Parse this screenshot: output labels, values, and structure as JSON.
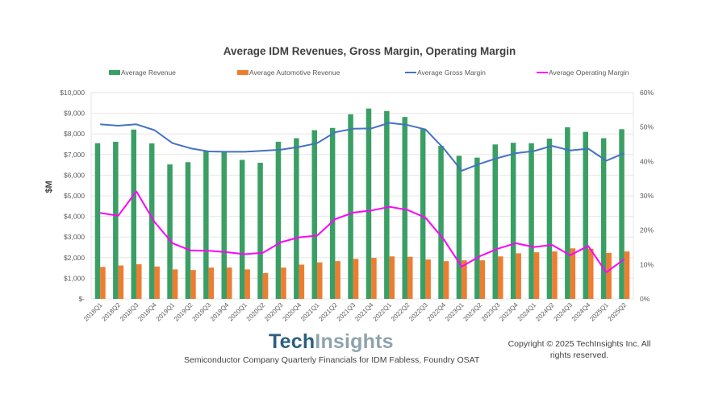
{
  "chart_data": {
    "type": "bar",
    "title": "Average IDM Revenues, Gross Margin, Operating Margin",
    "xlabel": "",
    "ylabel": "$M",
    "ylabel_right": "",
    "ylim": [
      0,
      10000
    ],
    "ylim_right": [
      0,
      60
    ],
    "grid": true,
    "legend_position": "top",
    "y_ticks": [
      "$-",
      "$1,000",
      "$2,000",
      "$3,000",
      "$4,000",
      "$5,000",
      "$6,000",
      "$7,000",
      "$8,000",
      "$9,000",
      "$10,000"
    ],
    "y_right_ticks": [
      "0%",
      "10%",
      "20%",
      "30%",
      "40%",
      "50%",
      "60%"
    ],
    "categories": [
      "2018Q1",
      "2018Q2",
      "2018Q3",
      "2018Q4",
      "2019Q1",
      "2019Q2",
      "2019Q3",
      "2019Q4",
      "2020Q1",
      "2020Q2",
      "2020Q3",
      "2020Q4",
      "2021Q1",
      "2021Q2",
      "2021Q3",
      "2021Q4",
      "2022Q1",
      "2022Q2",
      "2022Q3",
      "2022Q4",
      "2023Q1",
      "2023Q2",
      "2023Q3",
      "2023Q4",
      "2024Q1",
      "2024Q2",
      "2024Q3",
      "2024Q4",
      "2025Q1",
      "2025Q2"
    ],
    "series": [
      {
        "name": "Average Revenue",
        "type": "bar",
        "axis": "left",
        "color": "#3a9f64",
        "values": [
          7550,
          7620,
          8210,
          7540,
          6520,
          6630,
          7170,
          7150,
          6740,
          6600,
          7620,
          7790,
          8180,
          8290,
          8950,
          9230,
          9110,
          8820,
          8250,
          7420,
          6940,
          6850,
          7490,
          7570,
          7550,
          7770,
          8320,
          8100,
          7790,
          8230
        ]
      },
      {
        "name": "Average Automotive Revenue",
        "type": "bar",
        "axis": "left",
        "color": "#ed7d31",
        "values": [
          1550,
          1620,
          1680,
          1570,
          1430,
          1400,
          1520,
          1520,
          1430,
          1250,
          1520,
          1660,
          1770,
          1830,
          1940,
          1990,
          2060,
          2040,
          1910,
          1830,
          1870,
          1870,
          2060,
          2210,
          2260,
          2300,
          2450,
          2430,
          2230,
          2300
        ]
      },
      {
        "name": "Average Gross Margin",
        "type": "line",
        "axis": "right",
        "unit": "%",
        "color": "#4472c4",
        "values": [
          50.8,
          50.4,
          50.8,
          49.1,
          45.3,
          43.8,
          42.9,
          42.8,
          42.8,
          43.1,
          43.4,
          44.2,
          45.3,
          48.5,
          49.5,
          49.6,
          51.2,
          50.6,
          49.3,
          43.8,
          37.3,
          39.3,
          41.0,
          42.4,
          43.0,
          44.5,
          43.2,
          43.7,
          40.2,
          42.4
        ]
      },
      {
        "name": "Average Operating Margin",
        "type": "line",
        "axis": "right",
        "unit": "%",
        "color": "#ff00ff",
        "values": [
          25.0,
          24.2,
          31.3,
          22.4,
          16.2,
          14.1,
          14.0,
          13.6,
          13.0,
          13.4,
          16.5,
          17.9,
          18.4,
          23.2,
          25.1,
          25.7,
          26.8,
          25.9,
          23.6,
          17.4,
          9.4,
          12.4,
          14.6,
          16.2,
          15.1,
          15.7,
          12.7,
          15.4,
          7.7,
          11.6
        ]
      }
    ]
  },
  "footer": {
    "brand_part1": "Tech",
    "brand_part2": "Insights",
    "subtitle": "Semiconductor Company Quarterly Financials  for IDM Fabless, Foundry OSAT",
    "copyright": "Copyright © 2025 TechInsights Inc.  All rights reserved."
  }
}
